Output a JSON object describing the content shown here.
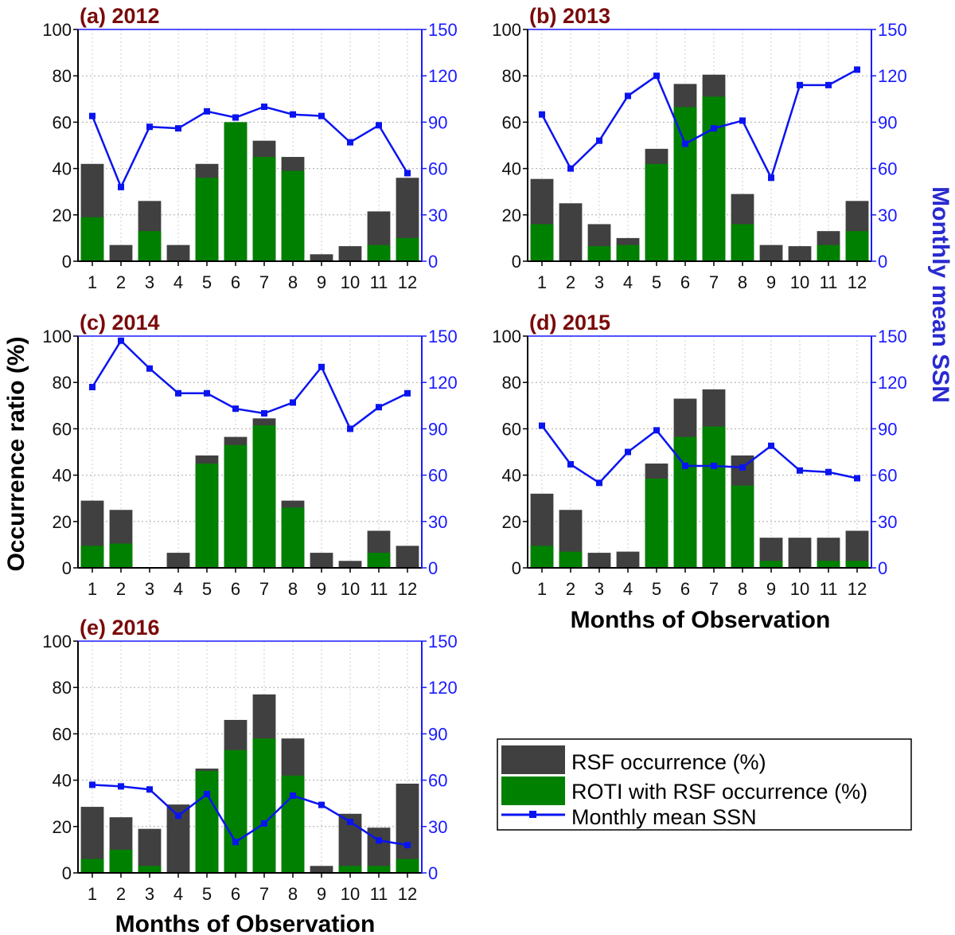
{
  "chart_data": {
    "type": "bar",
    "ylabel": "Occurrence ratio (%)",
    "y2label": "Monthly mean SSN",
    "xlabel": "Months of Observation",
    "ylim": [
      0,
      100
    ],
    "y2lim": [
      0,
      150
    ],
    "yticks": [
      0,
      20,
      40,
      60,
      80,
      100
    ],
    "y2ticks": [
      0,
      30,
      60,
      90,
      120,
      150
    ],
    "categories": [
      "1",
      "2",
      "3",
      "4",
      "5",
      "6",
      "7",
      "8",
      "9",
      "10",
      "11",
      "12"
    ],
    "grid": true,
    "legend_position": "bottom-right",
    "legend": [
      "RSF occurrence (%)",
      "ROTI with RSF occurrence (%)",
      "Monthly mean SSN"
    ],
    "colors": {
      "rsf": "#404040",
      "roti": "#008000",
      "ssn": "#0a14f0",
      "title": "#7a0a0a"
    },
    "panels": [
      {
        "title": "(a) 2012",
        "rsf": [
          42,
          7,
          26,
          7,
          42,
          60,
          52,
          45,
          3,
          6.5,
          21.5,
          36
        ],
        "roti": [
          19,
          0,
          13,
          0,
          36,
          60,
          45,
          39,
          0,
          0,
          7,
          10
        ],
        "ssn": [
          94,
          48,
          87,
          86,
          97,
          93,
          100,
          95,
          94,
          77,
          88,
          57
        ]
      },
      {
        "title": "(b) 2013",
        "rsf": [
          35.5,
          25,
          16,
          10,
          48.5,
          76.5,
          80.5,
          29,
          7,
          6.5,
          13,
          26
        ],
        "roti": [
          16,
          0,
          6.5,
          7,
          42,
          66.5,
          71,
          16,
          0,
          0,
          7,
          13
        ],
        "ssn": [
          95,
          60,
          78,
          107,
          120,
          76,
          86,
          91,
          54,
          114,
          114,
          124
        ]
      },
      {
        "title": "(c) 2014",
        "rsf": [
          29,
          25,
          0,
          6.5,
          48.5,
          56.5,
          64.5,
          29,
          6.5,
          3,
          16,
          9.5
        ],
        "roti": [
          9.5,
          10.5,
          0,
          0,
          45,
          53,
          61.5,
          26,
          0,
          0,
          6.5,
          0
        ],
        "ssn": [
          117,
          147,
          129,
          113,
          113,
          103,
          100,
          107,
          130,
          90,
          104,
          113
        ]
      },
      {
        "title": "(d) 2015",
        "rsf": [
          32,
          25,
          6.5,
          7,
          45,
          73,
          77,
          48.5,
          13,
          13,
          13,
          16
        ],
        "roti": [
          9.5,
          7,
          0,
          0,
          38.5,
          56.5,
          61,
          35.5,
          3,
          0,
          3,
          3
        ],
        "ssn": [
          92,
          67,
          55,
          75,
          89,
          66,
          66,
          65,
          79,
          63,
          62,
          58
        ]
      },
      {
        "title": "(e) 2016",
        "rsf": [
          28.5,
          24,
          19,
          29.5,
          45,
          66,
          77,
          58,
          3,
          25.5,
          19.5,
          38.5
        ],
        "roti": [
          6,
          10,
          3,
          0,
          44,
          53,
          58,
          42,
          0,
          3,
          3,
          6
        ],
        "ssn": [
          57,
          56,
          54,
          37,
          51,
          20,
          32,
          50,
          44,
          33,
          21,
          18
        ]
      }
    ]
  }
}
